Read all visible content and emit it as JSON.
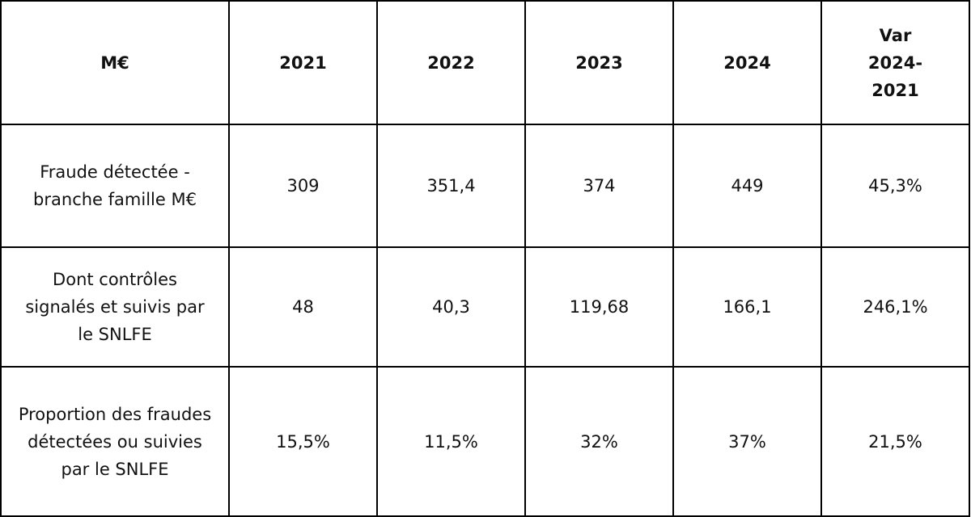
{
  "table": {
    "header": [
      "M€",
      "2021",
      "2022",
      "2023",
      "2024",
      "Var 2024-2021"
    ],
    "rows": [
      [
        "Fraude détectée - branche famille M€",
        "309",
        "351,4",
        "374",
        "449",
        "45,3%"
      ],
      [
        "Dont contrôles signalés et suivis par le SNLFE",
        "48",
        "40,3",
        "119,68",
        "166,1",
        "246,1%"
      ],
      [
        "Proportion des fraudes détectées ou suivies par le SNLFE",
        "15,5%",
        "11,5%",
        "32%",
        "37%",
        "21,5%"
      ]
    ]
  }
}
